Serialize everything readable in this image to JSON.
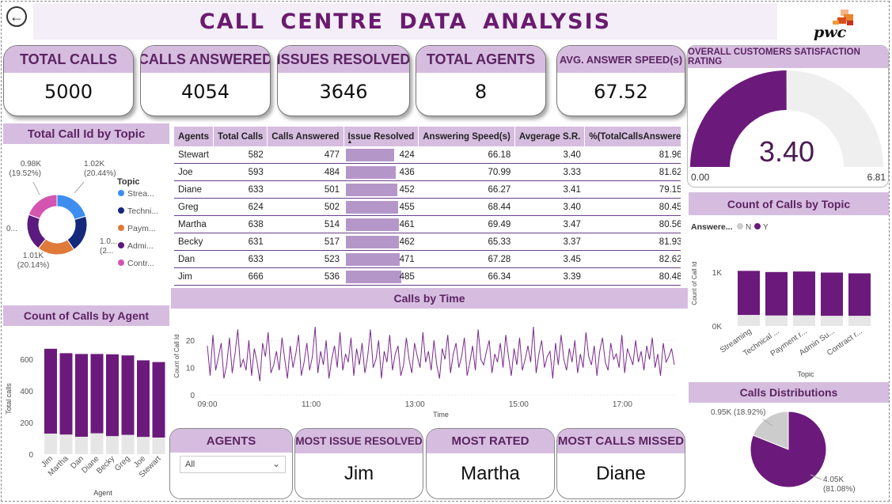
{
  "header": {
    "title": "CALL  CENTRE  DATA  ANALYSIS",
    "back_icon": "back-arrow-icon",
    "logo_text": "pwc"
  },
  "kpis": [
    {
      "label": "TOTAL CALLS",
      "value": "5000"
    },
    {
      "label": "CALLS ANSWERED",
      "value": "4054"
    },
    {
      "label": "ISSUES RESOLVED",
      "value": "3646"
    },
    {
      "label": "TOTAL AGENTS",
      "value": "8"
    },
    {
      "label": "AVG. ANSWER SPEED(s)",
      "value": "67.52"
    }
  ],
  "colors": {
    "accent": "#6a1b6f",
    "header_bg": "#d6bde0",
    "purple": "#6b1a7b",
    "light_gray": "#e6e6e6",
    "topic_colors": [
      "#3d8ef0",
      "#14287c",
      "#e07a3a",
      "#5b1a7e",
      "#d355b0"
    ]
  },
  "table": {
    "headers": [
      "Agents",
      "Total Calls",
      "Calls Answered",
      "Issue Resolved",
      "Answering Speed(s)",
      "Avgerage S.R.",
      "%(TotalCallsAnswered)"
    ],
    "sort_icon": "sort-ascending-icon",
    "rows": [
      [
        "Stewart",
        "582",
        "477",
        "424",
        "66.18",
        "3.40",
        "81.96%"
      ],
      [
        "Joe",
        "593",
        "484",
        "436",
        "70.99",
        "3.33",
        "81.62%"
      ],
      [
        "Diane",
        "633",
        "501",
        "452",
        "66.27",
        "3.41",
        "79.15%"
      ],
      [
        "Greg",
        "624",
        "502",
        "455",
        "68.44",
        "3.40",
        "80.45%"
      ],
      [
        "Martha",
        "638",
        "514",
        "461",
        "69.49",
        "3.47",
        "80.56%"
      ],
      [
        "Becky",
        "631",
        "517",
        "462",
        "65.33",
        "3.37",
        "81.93%"
      ],
      [
        "Dan",
        "633",
        "523",
        "471",
        "67.28",
        "3.45",
        "82.62%"
      ],
      [
        "Jim",
        "666",
        "536",
        "485",
        "66.34",
        "3.39",
        "80.48%"
      ]
    ]
  },
  "slicers": {
    "agents_title": "AGENTS",
    "agents_value": "All"
  },
  "cards": [
    {
      "label": "MOST ISSUE RESOLVED",
      "value": "Jim"
    },
    {
      "label": "MOST RATED",
      "value": "Martha"
    },
    {
      "label": "MOST CALLS MISSED",
      "value": "Diane"
    }
  ],
  "chart_data": [
    {
      "id": "topic-donut",
      "type": "pie",
      "title": "Total Call Id by Topic",
      "legend_title": "Topic",
      "categories": [
        "Streaming",
        "Technical Support",
        "Payment related",
        "Admin Support",
        "Contract related"
      ],
      "legend_labels": [
        "Strea...",
        "Techni...",
        "Paym...",
        "Admi...",
        "Contr..."
      ],
      "values": [
        1022,
        1000,
        1010,
        990,
        976
      ],
      "data_labels": [
        "1.02K (20.44%)",
        "0...",
        "1.01K (20.14%)",
        "1.0... (2...",
        "0.98K (19.52%)"
      ],
      "legend_position": "right"
    },
    {
      "id": "agent-bars",
      "type": "bar",
      "title": "Count of Calls by Agent",
      "categories": [
        "Jim",
        "Martha",
        "Dan",
        "Diane",
        "Becky",
        "Greg",
        "Joe",
        "Stewart"
      ],
      "series": [
        {
          "name": "Y",
          "values": [
            536,
            514,
            523,
            501,
            517,
            502,
            484,
            477
          ]
        },
        {
          "name": "N",
          "values": [
            130,
            124,
            110,
            132,
            114,
            122,
            109,
            105
          ]
        }
      ],
      "stacked": true,
      "xlabel": "Agent",
      "ylabel": "Total calls",
      "ylim": [
        0,
        700
      ],
      "yticks": [
        "0",
        "200",
        "400",
        "600"
      ]
    },
    {
      "id": "time-line",
      "type": "line",
      "title": "Calls by Time",
      "xlabel": "Time",
      "ylabel": "Count of Call Id",
      "ylim": [
        0,
        25
      ],
      "xticks": [
        "09:00",
        "11:00",
        "13:00",
        "15:00",
        "17:00"
      ],
      "yticks": [
        "0",
        "10",
        "20"
      ],
      "x_range": [
        "09:00",
        "18:00"
      ],
      "interval_minutes": 3,
      "values": [
        18,
        7,
        22,
        9,
        14,
        19,
        6,
        11,
        21,
        8,
        15,
        24,
        10,
        13,
        9,
        20,
        7,
        17,
        12,
        5,
        19,
        14,
        23,
        8,
        11,
        16,
        9,
        21,
        13,
        6,
        18,
        10,
        15,
        22,
        7,
        12,
        19,
        9,
        14,
        25,
        8,
        16,
        11,
        20,
        6,
        13,
        18,
        10,
        23,
        9,
        15,
        12,
        21,
        7,
        17,
        11,
        19,
        8,
        14,
        24,
        10,
        13,
        20,
        6,
        16,
        12,
        22,
        9,
        15,
        18,
        7,
        11,
        21,
        13,
        8,
        19,
        14,
        10,
        23,
        12,
        16,
        9,
        20,
        11,
        6,
        17,
        13,
        22,
        8,
        15,
        19,
        10,
        14,
        21,
        7,
        12,
        18,
        9,
        24,
        13,
        11,
        16,
        20,
        8,
        15,
        12,
        19,
        10,
        22,
        14,
        7,
        17,
        11,
        21,
        9,
        13,
        18,
        12,
        25,
        8,
        15,
        20,
        10,
        14,
        16,
        6,
        19,
        11,
        22,
        13,
        9,
        17,
        12,
        20,
        8,
        15,
        10,
        23,
        14,
        11,
        18,
        7,
        16,
        21,
        12,
        9,
        19,
        13,
        15,
        10,
        22,
        8,
        17,
        14,
        11,
        20,
        12,
        16,
        9,
        18,
        13,
        21,
        10,
        15,
        7,
        19,
        12,
        14,
        17,
        11
      ]
    },
    {
      "id": "gauge",
      "type": "gauge",
      "title": "OVERALL CUSTOMERS SATISFACTION RATING",
      "value": 3.4,
      "value_label": "3.40",
      "min": 0,
      "max": 6.81,
      "min_label": "0.00",
      "max_label": "6.81"
    },
    {
      "id": "topic-bars",
      "type": "bar",
      "title": "Count of Calls by Topic",
      "legend_title": "Answere...",
      "legend_labels": [
        "N",
        "Y"
      ],
      "categories": [
        "Streaming",
        "Technical ...",
        "Payment r...",
        "Admin Su...",
        "Contract r..."
      ],
      "series": [
        {
          "name": "N",
          "values": [
            205,
            195,
            198,
            189,
            189
          ]
        },
        {
          "name": "Y",
          "values": [
            817,
            805,
            812,
            801,
            787
          ]
        }
      ],
      "stacked": true,
      "xlabel": "Topic",
      "ylabel": "Count of Call Id",
      "ylim": [
        0,
        1100
      ],
      "yticks": [
        "0K",
        "1K"
      ]
    },
    {
      "id": "dist-pie",
      "type": "pie",
      "title": "Calls Distributions",
      "categories": [
        "N",
        "Y"
      ],
      "values": [
        946,
        4054
      ],
      "data_labels": [
        "0.95K (18.92%)",
        "4.05K (81.08%)"
      ]
    }
  ]
}
